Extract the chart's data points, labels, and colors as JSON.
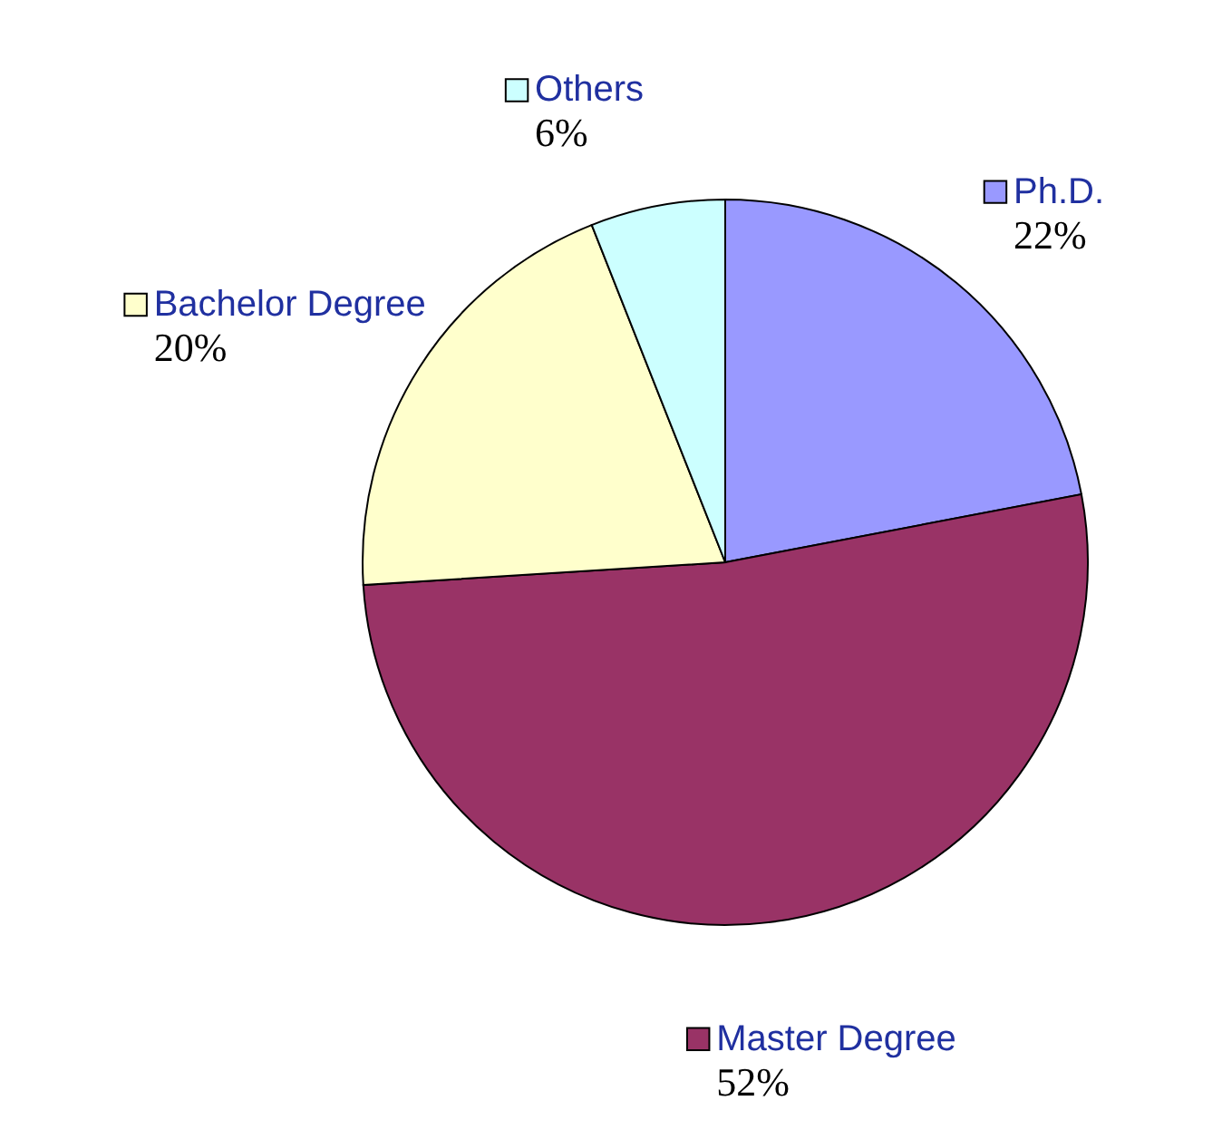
{
  "chart_data": {
    "type": "pie",
    "categories": [
      "Ph.D.",
      "Master Degree",
      "Bachelor Degree",
      "Others"
    ],
    "values": [
      22,
      52,
      20,
      6
    ],
    "colors": [
      "#9999ff",
      "#993366",
      "#ffffcc",
      "#ccffff"
    ],
    "value_labels": [
      "22%",
      "52%",
      "20%",
      "6%"
    ],
    "legend": "bottom left"
  }
}
